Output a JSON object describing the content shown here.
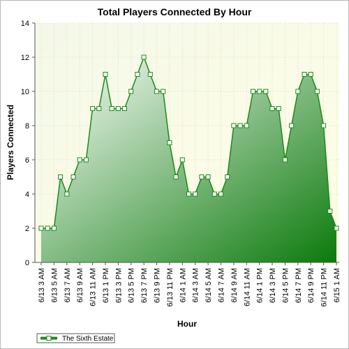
{
  "chart_data": {
    "type": "area",
    "title": "Total Players Connected By Hour",
    "xlabel": "Hour",
    "ylabel": "Players Connected",
    "ylim": [
      0,
      14
    ],
    "yticks": [
      0,
      2,
      4,
      6,
      8,
      10,
      12,
      14
    ],
    "grid": true,
    "legend": "bottom-left",
    "colors": {
      "line": "#1a8a1a",
      "fill_dark": "#0b7a0b",
      "fill_light": "#ffffff",
      "plot_bg": "#ffffe0",
      "marker": "#ffffff"
    },
    "x": [
      "6/13 3 AM",
      "6/13 4 AM",
      "6/13 5 AM",
      "6/13 6 AM",
      "6/13 7 AM",
      "6/13 8 AM",
      "6/13 9 AM",
      "6/13 10 AM",
      "6/13 11 AM",
      "6/13 12 PM",
      "6/13 1 PM",
      "6/13 2 PM",
      "6/13 3 PM",
      "6/13 4 PM",
      "6/13 5 PM",
      "6/13 6 PM",
      "6/13 7 PM",
      "6/13 8 PM",
      "6/13 9 PM",
      "6/13 10 PM",
      "6/13 11 PM",
      "6/14 12 AM",
      "6/14 1 AM",
      "6/14 2 AM",
      "6/14 3 AM",
      "6/14 4 AM",
      "6/14 5 AM",
      "6/14 6 AM",
      "6/14 7 AM",
      "6/14 8 AM",
      "6/14 9 AM",
      "6/14 10 AM",
      "6/14 11 AM",
      "6/14 12 PM",
      "6/14 1 PM",
      "6/14 2 PM",
      "6/14 3 PM",
      "6/14 4 PM",
      "6/14 5 PM",
      "6/14 6 PM",
      "6/14 7 PM",
      "6/14 8 PM",
      "6/14 9 PM",
      "6/14 10 PM",
      "6/14 11 PM",
      "6/15 12 AM",
      "6/15 1 AM"
    ],
    "xtick_labels": [
      "6/13 3 AM",
      "6/13 5 AM",
      "6/13 7 AM",
      "6/13 9 AM",
      "6/13 11 AM",
      "6/13 1 PM",
      "6/13 3 PM",
      "6/13 5 PM",
      "6/13 7 PM",
      "6/13 9 PM",
      "6/13 11 PM",
      "6/14 1 AM",
      "6/14 3 AM",
      "6/14 5 AM",
      "6/14 7 AM",
      "6/14 9 AM",
      "6/14 11 AM",
      "6/14 1 PM",
      "6/14 3 PM",
      "6/14 5 PM",
      "6/14 7 PM",
      "6/14 9 PM",
      "6/14 11 PM",
      "6/15 1 AM"
    ],
    "series": [
      {
        "name": "The Sixth Estate",
        "values": [
          2,
          2,
          2,
          5,
          4,
          5,
          6,
          6,
          9,
          9,
          11,
          9,
          9,
          9,
          10,
          11,
          12,
          11,
          10,
          10,
          7,
          5,
          6,
          4,
          4,
          5,
          5,
          4,
          4,
          5,
          8,
          8,
          8,
          10,
          10,
          10,
          9,
          9,
          6,
          8,
          10,
          11,
          11,
          10,
          8,
          3,
          2
        ]
      }
    ]
  }
}
